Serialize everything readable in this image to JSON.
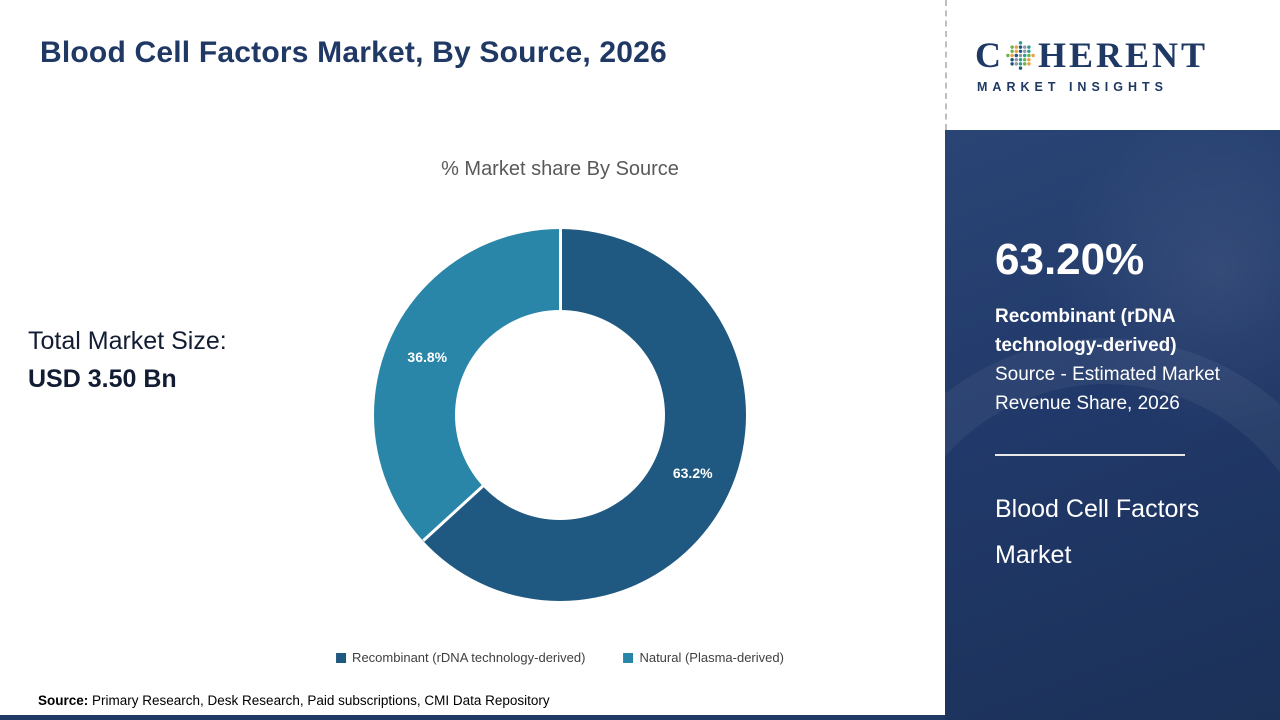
{
  "header": {
    "title": "Blood Cell Factors Market, By Source, 2026"
  },
  "logo": {
    "text_start": "C",
    "text_end": "HERENT",
    "tagline": "MARKET INSIGHTS",
    "globe_icon": "dotted-globe-icon",
    "globe_colors": [
      "#2a9d8f",
      "#6fb24c",
      "#e8a33d",
      "#23557e",
      "#8f9aa8"
    ]
  },
  "brand_colors": {
    "navy": "#1f3864",
    "chart_blue": "#1f5880",
    "chart_teal": "#2a86a8"
  },
  "main": {
    "total_market_label": "Total Market Size:",
    "total_market_value": "USD 3.50 Bn",
    "source_label": "Source:",
    "source_text": " Primary Research, Desk Research, Paid subscriptions, CMI Data Repository"
  },
  "chart_data": {
    "type": "pie",
    "subtype": "donut",
    "title": "% Market share By Source",
    "unit": "%",
    "start_angle_deg": 0,
    "direction": "clockwise",
    "legend_position": "bottom",
    "segments": [
      {
        "label": "Recombinant (rDNA technology-derived)",
        "value": 63.2,
        "data_label": "63.2%",
        "color": "#1f5880"
      },
      {
        "label": "Natural (Plasma-derived)",
        "value": 36.8,
        "data_label": "36.8%",
        "color": "#2a86a8"
      }
    ]
  },
  "sidebar": {
    "stat_value": "63.20%",
    "stat_title": "Recombinant (rDNA technology-derived)",
    "stat_subtitle": "Source - Estimated Market Revenue Share, 2026",
    "product_title": "Blood Cell Factors Market"
  }
}
